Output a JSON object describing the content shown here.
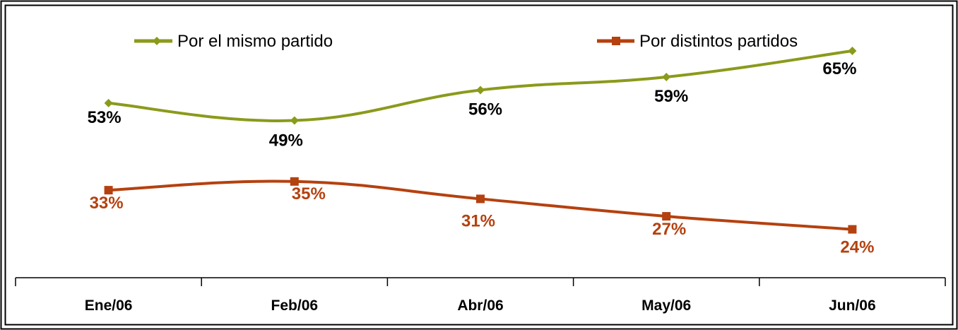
{
  "chart_data": {
    "type": "line",
    "categories": [
      "Ene/06",
      "Feb/06",
      "Abr/06",
      "May/06",
      "Jun/06"
    ],
    "series": [
      {
        "name": "Por el mismo partido",
        "values": [
          53,
          49,
          56,
          59,
          65
        ],
        "labels": [
          "53%",
          "49%",
          "56%",
          "59%",
          "65%"
        ],
        "color": "#8B9A1B",
        "label_color": "#000000",
        "marker": "diamond"
      },
      {
        "name": "Por distintos partidos",
        "values": [
          33,
          35,
          31,
          27,
          24
        ],
        "labels": [
          "33%",
          "35%",
          "31%",
          "27%",
          "24%"
        ],
        "color": "#B5410F",
        "label_color": "#B5410F",
        "marker": "square"
      }
    ],
    "legend_position": "top",
    "grid": false,
    "smooth": true
  }
}
